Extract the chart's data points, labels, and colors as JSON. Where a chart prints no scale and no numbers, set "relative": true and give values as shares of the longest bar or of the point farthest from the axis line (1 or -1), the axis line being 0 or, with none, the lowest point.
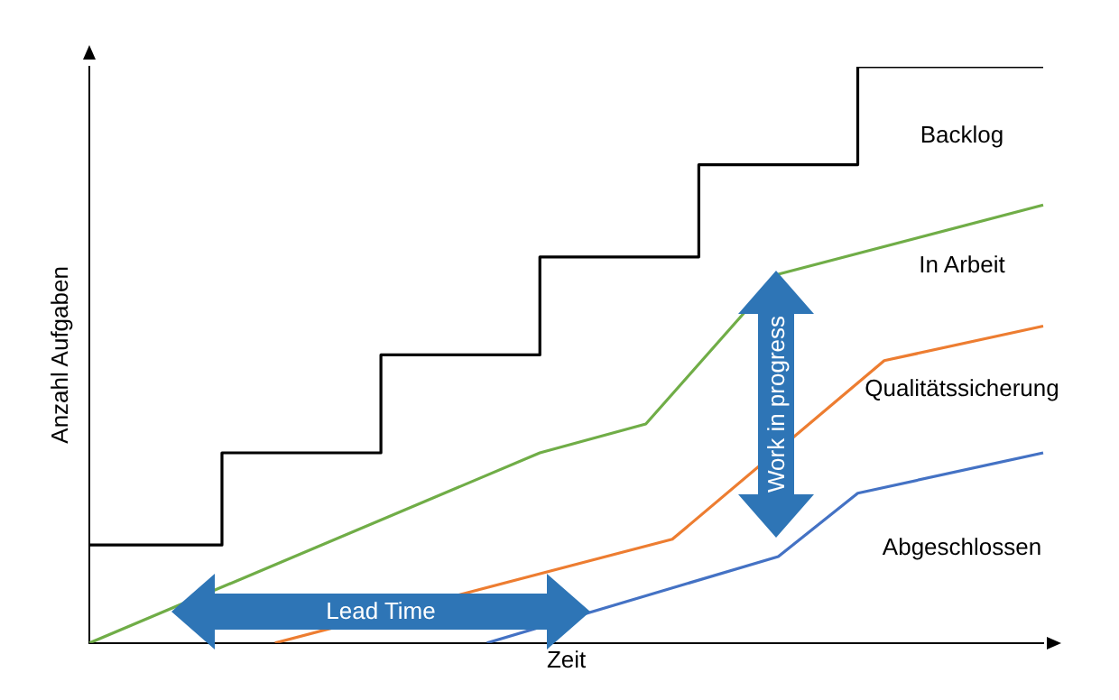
{
  "chart_data": {
    "type": "line",
    "relative": true,
    "xlabel": "Zeit",
    "ylabel": "Anzahl Aufgaben",
    "grid": false,
    "legend": false,
    "marker": "none",
    "line_style": "solid",
    "categories": [
      null,
      null,
      null,
      null,
      null,
      null,
      null,
      null,
      null,
      null,
      null,
      null,
      null,
      null,
      null,
      null,
      null,
      null,
      null,
      null,
      null,
      null,
      null,
      null,
      null,
      null,
      null,
      null,
      null,
      null,
      null,
      null,
      null,
      null,
      null,
      null,
      null
    ],
    "series": [
      {
        "name": "Backlog",
        "type": "step",
        "color": "#000000",
        "values": [
          0.17,
          0.17,
          0.17,
          0.17,
          0.17,
          0.17,
          0.33,
          0.33,
          0.33,
          0.33,
          0.33,
          0.33,
          0.5,
          0.5,
          0.5,
          0.5,
          0.5,
          0.5,
          0.67,
          0.67,
          0.67,
          0.67,
          0.67,
          0.67,
          0.83,
          0.83,
          0.83,
          0.83,
          0.83,
          0.83,
          1,
          1,
          1,
          1,
          1,
          1,
          1
        ]
      },
      {
        "name": "In Arbeit",
        "color": "#70ad47",
        "values": [
          0,
          null,
          null,
          null,
          null,
          null,
          null,
          null,
          null,
          null,
          null,
          null,
          null,
          null,
          null,
          null,
          null,
          0.33,
          null,
          null,
          null,
          0.38,
          null,
          null,
          null,
          null,
          0.64,
          null,
          null,
          null,
          null,
          null,
          null,
          null,
          null,
          null,
          0.76
        ]
      },
      {
        "name": "Qualitätssicherung",
        "color": "#ed7d31",
        "values": [
          null,
          null,
          null,
          null,
          null,
          null,
          null,
          0,
          null,
          null,
          null,
          null,
          null,
          null,
          null,
          null,
          null,
          null,
          null,
          null,
          null,
          null,
          0.18,
          null,
          null,
          null,
          null,
          null,
          null,
          null,
          0.49,
          null,
          null,
          null,
          null,
          null,
          0.55
        ]
      },
      {
        "name": "Abgeschlossen",
        "color": "#4472c4",
        "values": [
          null,
          null,
          null,
          null,
          null,
          null,
          null,
          null,
          null,
          null,
          null,
          null,
          null,
          null,
          null,
          0,
          null,
          null,
          null,
          null,
          null,
          null,
          null,
          null,
          null,
          null,
          0.15,
          null,
          null,
          0.26,
          null,
          null,
          null,
          null,
          null,
          null,
          0.33
        ]
      }
    ],
    "annotations": [
      "Lead Time",
      "Work in progress"
    ]
  }
}
